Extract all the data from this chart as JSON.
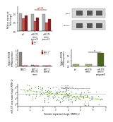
{
  "bg_color": "#ffffff",
  "panel_C": {
    "groups": [
      "ctrl",
      "miR-375\nmimic\ncontrol-1",
      "miR-375\nmimic\ncontrol-2"
    ],
    "series": [
      "si-ctrl",
      "si-1",
      "si-2"
    ],
    "colors": [
      "#b0b0b0",
      "#c8524a",
      "#8b1a1a"
    ],
    "values_by_group": [
      [
        1.0,
        0.72,
        0.88
      ],
      [
        0.95,
        0.55,
        0.75
      ],
      [
        0.97,
        0.5,
        0.68
      ]
    ],
    "ylabel": "Relative expression\n(fold change)",
    "ylim": [
      0,
      1.4
    ],
    "yticks": [
      0.0,
      0.5,
      1.0
    ],
    "sig_label": "p<0.01",
    "sig_x1": 1,
    "sig_x2": 2,
    "sig_y": 1.22
  },
  "panel_E": {
    "groups": [
      "PANC1",
      "BxPC-3\nmiR-375\nmimic",
      "BxPC-3\ncontrol"
    ],
    "series": [
      "siRNA-ctrl",
      "siRNA-1",
      "siRNA-2"
    ],
    "colors": [
      "#8b8680",
      "#c8524a",
      "#8b1a1a"
    ],
    "values_by_group": [
      [
        4.5,
        0.28,
        0.22
      ],
      [
        0.3,
        0.18,
        0.14
      ],
      [
        0.25,
        0.15,
        0.12
      ]
    ],
    "ylabel": "Relative POSTN\nmRNA expression",
    "ylim": [
      0,
      5.5
    ],
    "yticks": [
      0,
      1,
      2,
      3,
      4,
      5
    ]
  },
  "panel_F": {
    "groups": [
      "ctrl",
      "miR-375\nmimic",
      "miR-375\nmimic+\nantagomiR"
    ],
    "colors": [
      "#b8b878",
      "#b8b878",
      "#4a6620"
    ],
    "values": [
      0.18,
      0.15,
      1.25
    ],
    "ylabel": "Relative POSTN\nmRNA expression",
    "ylim": [
      0,
      1.6
    ],
    "yticks": [
      0.0,
      0.5,
      1.0
    ],
    "sig_label": "**",
    "sig_x1": 1,
    "sig_x2": 2,
    "sig_y": 1.35
  },
  "panel_G": {
    "xlabel": "Periostin expression (Log2, RPKM+1)",
    "ylabel": "miR-375 expression (Log2, RPM+1)",
    "xlim": [
      0,
      7
    ],
    "ylim": [
      -1,
      7
    ],
    "dot_color": "#5a8a40",
    "line_color": "#88b840",
    "slope": -0.55,
    "intercept": 5.2,
    "annotation": "r = -0.41\np = 3.1 x 10-8\nn = 179\nSpearman correlation in TCGA-PAAD"
  }
}
